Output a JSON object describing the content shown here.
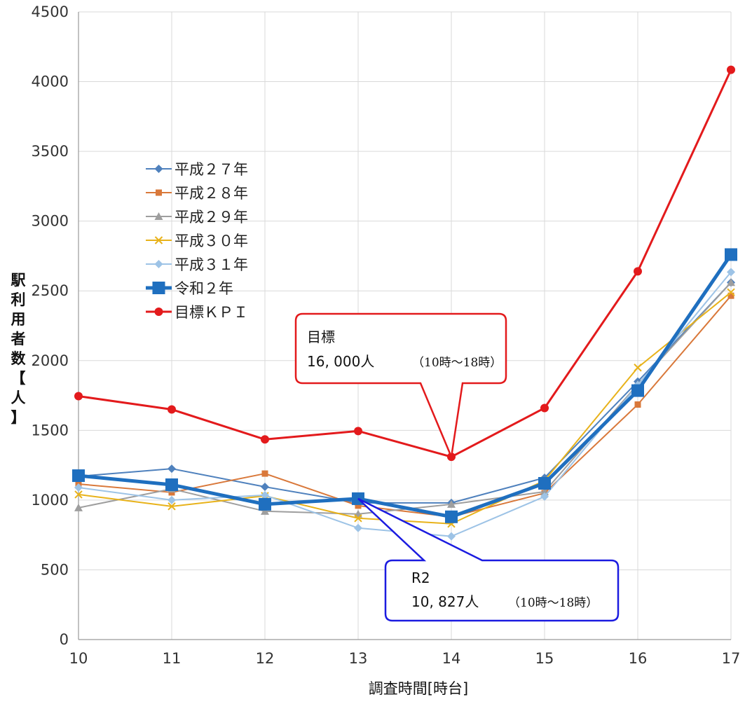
{
  "chart_data": {
    "type": "line",
    "xlabel": "調査時間[時台]",
    "ylabel": "駅利用者数【人】",
    "x": [
      10,
      11,
      12,
      13,
      14,
      15,
      16,
      17
    ],
    "ylim": [
      0,
      4500
    ],
    "yticks": [
      0,
      500,
      1000,
      1500,
      2000,
      2500,
      3000,
      3500,
      4000,
      4500
    ],
    "grid": true,
    "legend_position": "left-middle",
    "series": [
      {
        "name": "平成２７年",
        "color": "#4f81bd",
        "marker": "diamond",
        "values": [
          1170,
          1225,
          1095,
          980,
          980,
          1160,
          1850,
          2560
        ]
      },
      {
        "name": "平成２８年",
        "color": "#d9783a",
        "marker": "square",
        "values": [
          1115,
          1055,
          1190,
          960,
          880,
          1050,
          1685,
          2465
        ]
      },
      {
        "name": "平成２９年",
        "color": "#9e9e9e",
        "marker": "triangle",
        "values": [
          945,
          1080,
          920,
          900,
          970,
          1060,
          1830,
          2560
        ]
      },
      {
        "name": "平成３０年",
        "color": "#e8b21a",
        "marker": "x",
        "values": [
          1040,
          955,
          1030,
          870,
          830,
          1140,
          1950,
          2490
        ]
      },
      {
        "name": "平成３１年",
        "color": "#9dc3e6",
        "marker": "diamond",
        "values": [
          1090,
          1000,
          1035,
          800,
          740,
          1025,
          1825,
          2635
        ]
      },
      {
        "name": "令和２年",
        "color": "#1f6fbf",
        "marker": "square-large",
        "values": [
          1175,
          1110,
          970,
          1010,
          880,
          1120,
          1785,
          2760
        ]
      },
      {
        "name": "目標ＫＰＩ",
        "color": "#e31a1c",
        "marker": "circle",
        "values": [
          1745,
          1650,
          1435,
          1495,
          1310,
          1660,
          2640,
          4085
        ]
      }
    ],
    "annotations": [
      {
        "title": "目標",
        "value": "16, 000人",
        "note": "（10時～18時）",
        "color": "#e31a1c",
        "points_to_x": 14
      },
      {
        "title": "R2",
        "value": "10, 827人",
        "note": "（10時～18時）",
        "color": "#1b1be0",
        "points_to_x": 13
      }
    ]
  }
}
